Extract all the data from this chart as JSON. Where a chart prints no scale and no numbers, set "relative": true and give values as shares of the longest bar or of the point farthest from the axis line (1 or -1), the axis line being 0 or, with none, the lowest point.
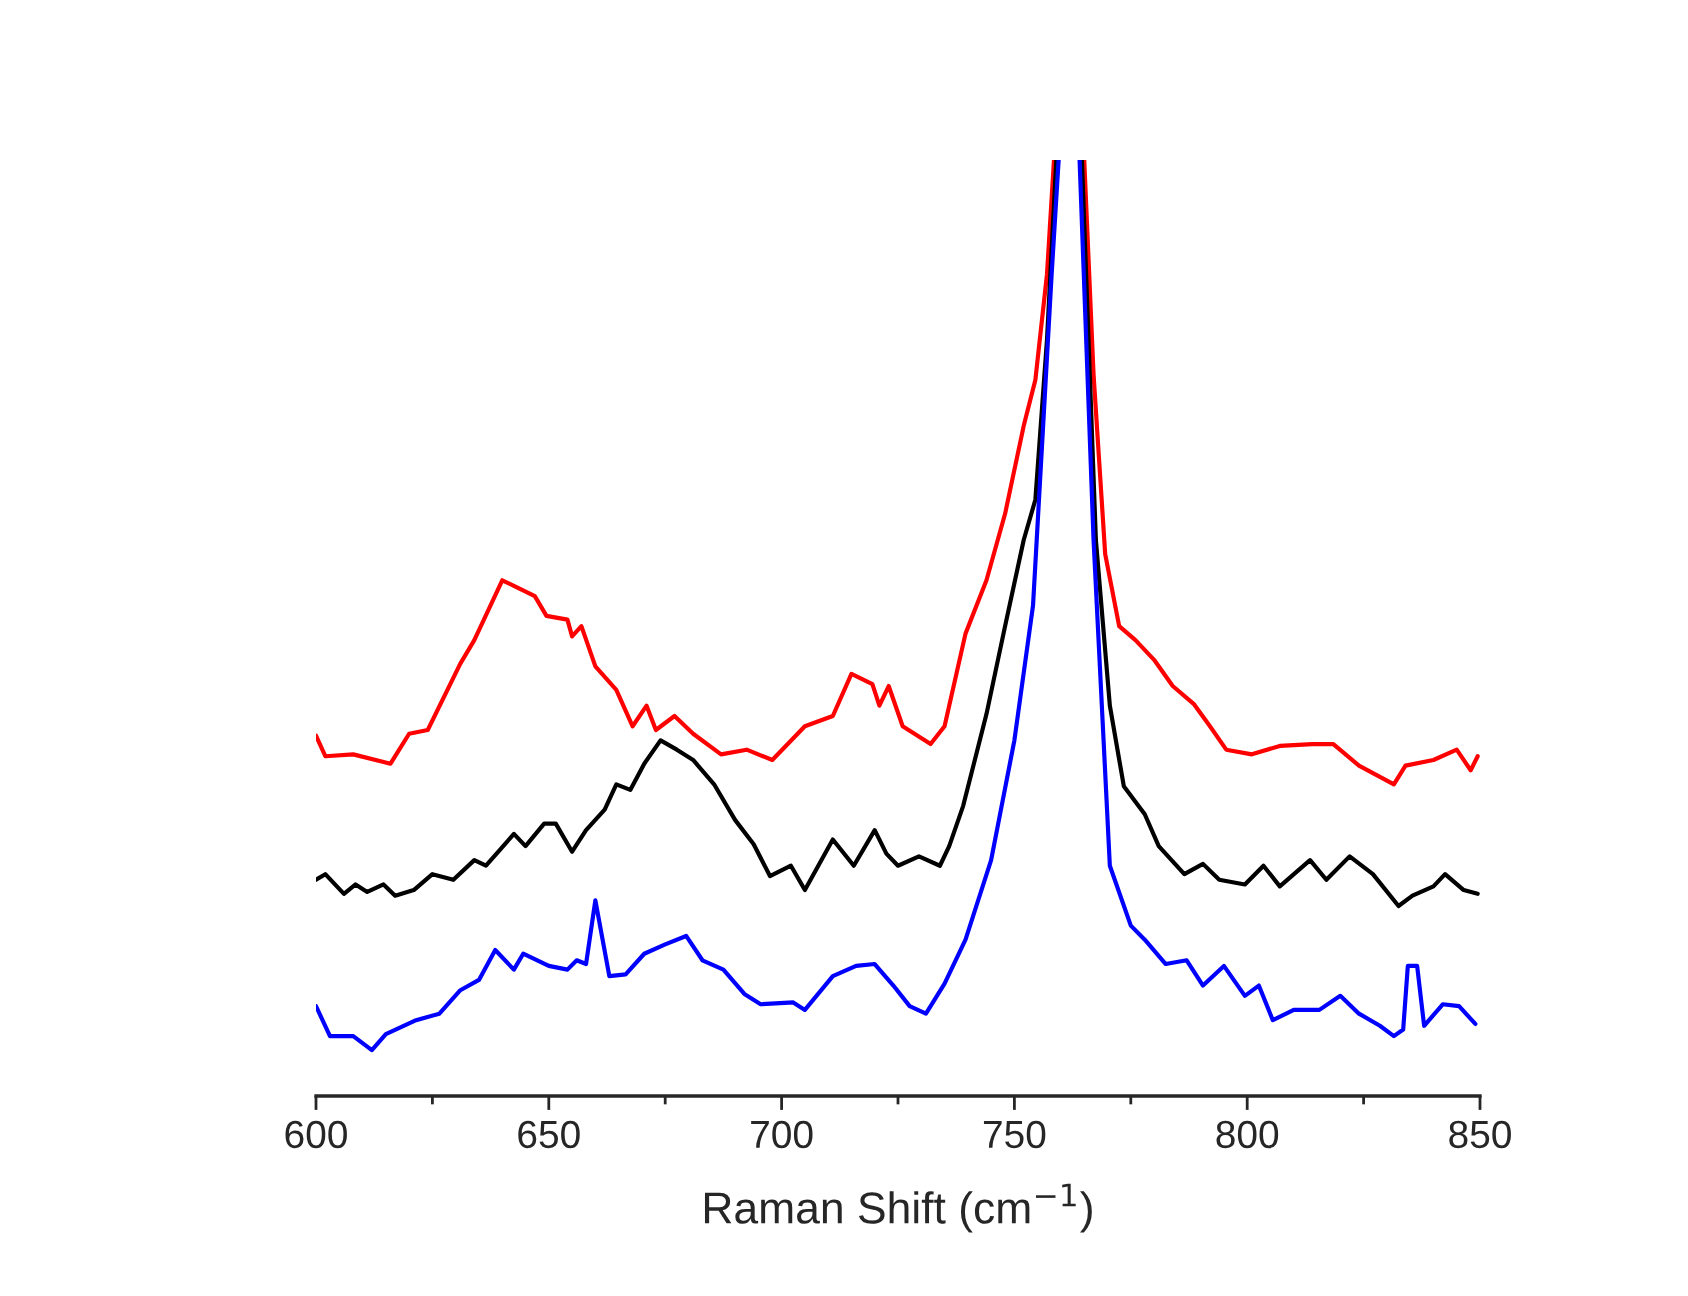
{
  "chart_data": {
    "type": "line",
    "relative": true,
    "xlabel": "Raman Shift (cm$^{−1}$)",
    "xlim": [
      600,
      850
    ],
    "xticks": [
      600,
      {
        "value": 625,
        "label": null
      },
      650,
      {
        "value": 675,
        "label": null
      },
      700,
      {
        "value": 725,
        "label": null
      },
      750,
      {
        "value": 775,
        "label": null
      },
      800,
      {
        "value": 825,
        "label": null
      },
      850
    ],
    "tick_labels": "x",
    "grid": false,
    "legend": false,
    "line_style": "solid",
    "marker": "none",
    "series": [
      {
        "color": "#ff0000",
        "x": [
          600,
          602,
          608,
          616,
          620,
          624,
          631,
          634,
          640,
          642.5,
          647,
          649.5,
          654,
          655,
          657,
          660,
          664.5,
          668,
          671,
          673,
          677,
          681,
          687,
          692.5,
          698,
          705,
          711,
          715,
          719.5,
          721,
          723,
          726,
          732,
          735,
          739.5,
          744,
          748,
          752,
          754.5,
          757,
          758.5,
          761,
          765,
          767,
          769.5,
          772.5,
          776,
          780,
          784,
          788.5,
          792,
          795.5,
          801,
          807,
          814,
          818.5,
          824,
          831.5,
          834,
          840,
          845,
          848,
          849.5
        ],
        "values": [
          0.385,
          0.363,
          0.365,
          0.355,
          0.387,
          0.391,
          0.462,
          0.487,
          0.551,
          0.545,
          0.534,
          0.513,
          0.509,
          0.491,
          0.502,
          0.459,
          0.434,
          0.395,
          0.417,
          0.391,
          0.406,
          0.387,
          0.365,
          0.37,
          0.359,
          0.395,
          0.406,
          0.451,
          0.44,
          0.417,
          0.438,
          0.395,
          0.376,
          0.395,
          0.494,
          0.551,
          0.622,
          0.716,
          0.765,
          0.878,
          1,
          null,
          1,
          0.771,
          0.579,
          0.502,
          0.487,
          0.466,
          0.438,
          0.419,
          0.395,
          0.37,
          0.365,
          0.374,
          0.376,
          0.376,
          0.353,
          0.333,
          0.353,
          0.359,
          0.37,
          0.348,
          0.363
        ]
      },
      {
        "color": "#000000",
        "x": [
          600,
          602,
          606,
          608.5,
          611,
          614.5,
          617,
          621,
          625,
          629.5,
          634,
          636.5,
          639.5,
          642.5,
          645,
          649,
          651.5,
          655,
          658,
          662,
          664.5,
          667.5,
          670.5,
          674,
          677.5,
          681,
          685.5,
          690,
          694,
          697.5,
          702,
          705,
          711,
          715.5,
          720,
          722.5,
          725,
          729.5,
          734,
          736,
          739,
          744,
          748,
          752,
          754.5,
          757,
          759,
          762,
          764.5,
          767.5,
          770.5,
          773.5,
          778,
          781,
          786.5,
          790.5,
          794,
          799.5,
          803.5,
          807,
          813.5,
          817,
          822,
          827,
          832.5,
          835.5,
          840,
          842.5,
          846.5,
          849.5
        ],
        "values": [
          0.231,
          0.237,
          0.216,
          0.226,
          0.218,
          0.226,
          0.214,
          0.22,
          0.237,
          0.231,
          0.252,
          0.246,
          0.263,
          0.28,
          0.267,
          0.291,
          0.291,
          0.261,
          0.284,
          0.306,
          0.333,
          0.327,
          0.355,
          0.38,
          0.37,
          0.359,
          0.333,
          0.295,
          0.269,
          0.235,
          0.246,
          0.22,
          0.274,
          0.246,
          0.284,
          0.259,
          0.246,
          0.256,
          0.246,
          0.267,
          0.31,
          0.408,
          0.502,
          0.594,
          0.637,
          0.808,
          1,
          null,
          1,
          0.594,
          0.417,
          0.331,
          0.301,
          0.267,
          0.237,
          0.248,
          0.231,
          0.226,
          0.246,
          0.224,
          0.252,
          0.231,
          0.256,
          0.237,
          0.203,
          0.214,
          0.224,
          0.237,
          0.22,
          0.216
        ]
      },
      {
        "color": "#0000ff",
        "x": [
          600,
          603,
          608,
          612,
          615,
          621.5,
          626.5,
          631,
          635,
          638.5,
          642.5,
          644.5,
          650,
          654,
          656,
          658,
          660,
          663,
          666.5,
          670.5,
          675,
          679.5,
          683,
          687.5,
          692,
          695.5,
          702.5,
          705,
          711,
          716,
          720,
          724,
          727.5,
          731,
          735,
          739.5,
          745,
          750,
          754,
          756,
          758,
          759.5,
          761.5,
          764,
          767,
          770.5,
          775,
          778,
          782.5,
          787,
          790.5,
          795,
          799.5,
          802.5,
          805.5,
          810,
          815.5,
          820,
          824,
          828.5,
          831.5,
          833.5,
          834.5,
          836.5,
          838,
          842,
          845.5,
          849
        ],
        "values": [
          0.096,
          0.064,
          0.064,
          0.049,
          0.066,
          0.081,
          0.088,
          0.113,
          0.124,
          0.156,
          0.135,
          0.152,
          0.139,
          0.135,
          0.145,
          0.141,
          0.209,
          0.128,
          0.13,
          0.152,
          0.162,
          0.171,
          0.145,
          0.135,
          0.109,
          0.098,
          0.1,
          0.092,
          0.128,
          0.139,
          0.141,
          0.118,
          0.096,
          0.088,
          0.12,
          0.167,
          0.252,
          0.38,
          0.524,
          0.701,
          0.878,
          1,
          null,
          1,
          0.594,
          0.246,
          0.182,
          0.167,
          0.141,
          0.145,
          0.118,
          0.139,
          0.107,
          0.118,
          0.081,
          0.092,
          0.092,
          0.107,
          0.088,
          0.075,
          0.064,
          0.071,
          0.139,
          0.139,
          0.075,
          0.098,
          0.096,
          0.077
        ]
      }
    ]
  }
}
